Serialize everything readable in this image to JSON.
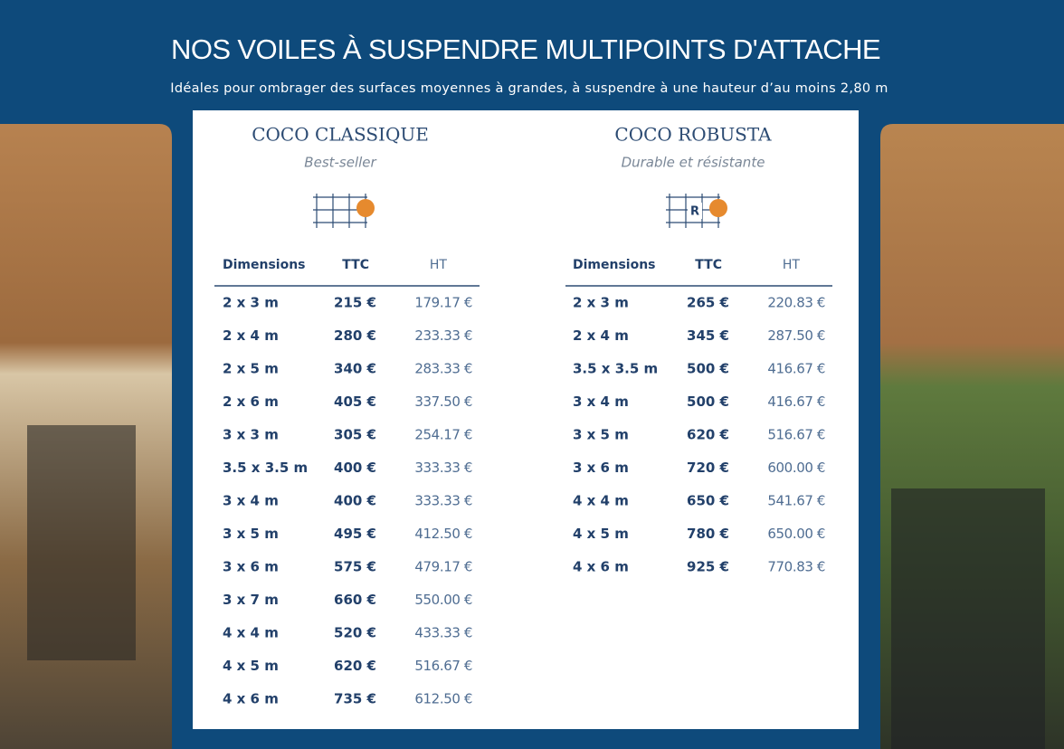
{
  "header": {
    "title": "NOS VOILES À SUSPENDRE MULTIPOINTS D'ATTACHE",
    "subtitle": "Idéales pour ombrager des surfaces moyennes à grandes, à suspendre à une hauteur d’au moins 2,80 m"
  },
  "products": [
    {
      "name": "COCO CLASSIQUE",
      "tagline": "Best-seller",
      "columns": [
        "Dimensions",
        "TTC",
        "HT"
      ],
      "rows": [
        [
          "2 x 3 m",
          "215 €",
          "179.17 €"
        ],
        [
          "2 x 4 m",
          "280 €",
          "233.33 €"
        ],
        [
          "2 x 5 m",
          "340 €",
          "283.33 €"
        ],
        [
          "2 x 6 m",
          "405 €",
          "337.50 €"
        ],
        [
          "3 x 3 m",
          "305 €",
          "254.17 €"
        ],
        [
          "3.5 x 3.5 m",
          "400 €",
          "333.33 €"
        ],
        [
          "3 x 4 m",
          "400 €",
          "333.33 €"
        ],
        [
          "3 x 5 m",
          "495 €",
          "412.50 €"
        ],
        [
          "3 x 6 m",
          "575 €",
          "479.17 €"
        ],
        [
          "3 x 7 m",
          "660 €",
          "550.00 €"
        ],
        [
          "4 x 4 m",
          "520 €",
          "433.33 €"
        ],
        [
          "4 x 5 m",
          "620 €",
          "516.67 €"
        ],
        [
          "4 x 6 m",
          "735 €",
          "612.50 €"
        ]
      ]
    },
    {
      "name": "COCO ROBUSTA",
      "tagline": "Durable et résistante",
      "icon_label": "R",
      "columns": [
        "Dimensions",
        "TTC",
        "HT"
      ],
      "rows": [
        [
          "2 x 3 m",
          "265 €",
          "220.83 €"
        ],
        [
          "2 x 4 m",
          "345 €",
          "287.50 €"
        ],
        [
          "3.5 x 3.5 m",
          "500 €",
          "416.67 €"
        ],
        [
          "3 x 4 m",
          "500 €",
          "416.67 €"
        ],
        [
          "3 x 5 m",
          "620 €",
          "516.67 €"
        ],
        [
          "3 x 6 m",
          "720 €",
          "600.00 €"
        ],
        [
          "4 x 4 m",
          "650 €",
          "541.67 €"
        ],
        [
          "4 x 5 m",
          "780 €",
          "650.00 €"
        ],
        [
          "4 x 6 m",
          "925 €",
          "770.83 €"
        ]
      ]
    }
  ]
}
